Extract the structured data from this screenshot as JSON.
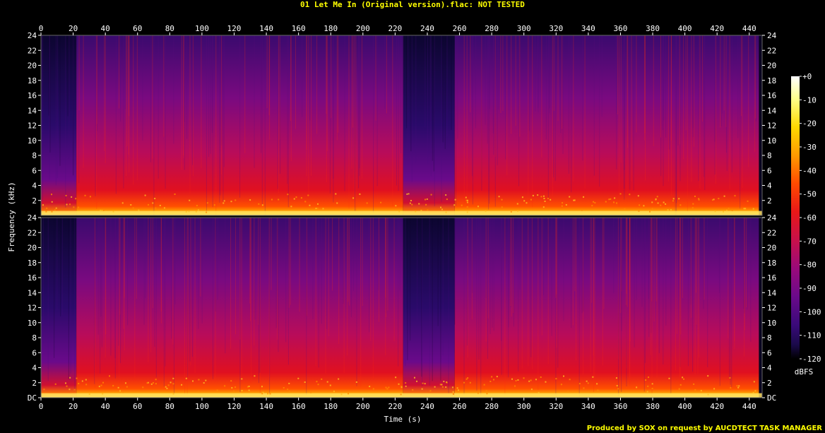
{
  "chart_data": {
    "type": "heatmap",
    "title": "01 Let Me In (Original version).flac: NOT TESTED",
    "xlabel": "Time (s)",
    "ylabel": "Frequency (kHz)",
    "credit": "Produced by SOX on request by AUCDTECT TASK MANAGER",
    "xlim": [
      0,
      448
    ],
    "ylim": [
      0,
      24
    ],
    "x_ticks": [
      "0",
      "20",
      "40",
      "60",
      "80",
      "100",
      "120",
      "140",
      "160",
      "180",
      "200",
      "220",
      "240",
      "260",
      "280",
      "300",
      "320",
      "340",
      "360",
      "380",
      "400",
      "420",
      "440"
    ],
    "channels": [
      {
        "y_ticks": [
          "24",
          "22",
          "20",
          "18",
          "16",
          "14",
          "12",
          "10",
          "8",
          "6",
          "4",
          "2"
        ]
      },
      {
        "y_ticks": [
          "24",
          "22",
          "20",
          "18",
          "16",
          "14",
          "12",
          "10",
          "8",
          "6",
          "4",
          "2",
          "DC"
        ]
      }
    ],
    "colorbar": {
      "label": "dBFS",
      "range": [
        -120,
        0
      ],
      "ticks": [
        "+0",
        "-10",
        "-20",
        "-30",
        "-40",
        "-50",
        "-60",
        "-70",
        "-80",
        "-90",
        "-100",
        "-110",
        "-120"
      ],
      "colors": [
        "#000000",
        "#1a0a4a",
        "#3a0a7a",
        "#6a0a8a",
        "#9a0a7a",
        "#c8104a",
        "#e81818",
        "#ff4a00",
        "#ff9a00",
        "#ffd800",
        "#ffff8a",
        "#ffffff"
      ]
    },
    "segments": [
      {
        "start": 0,
        "end": 22,
        "level": "quiet intro"
      },
      {
        "start": 22,
        "end": 225,
        "level": "loud"
      },
      {
        "start": 225,
        "end": 257,
        "level": "quiet break"
      },
      {
        "start": 257,
        "end": 446,
        "level": "loud"
      },
      {
        "start": 446,
        "end": 448,
        "level": "silence"
      }
    ]
  }
}
